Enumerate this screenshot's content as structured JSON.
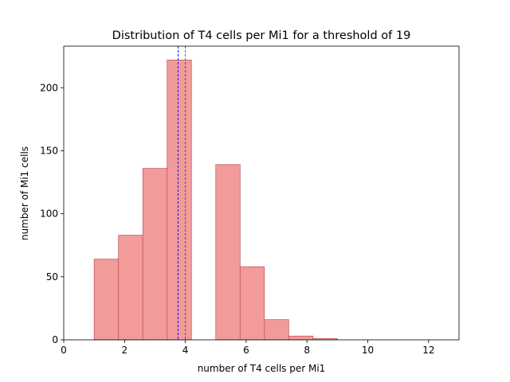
{
  "chart_data": {
    "type": "histogram",
    "title": "Distribution of T4 cells per Mi1 for a threshold of 19",
    "xlabel": "number of T4 cells per Mi1",
    "ylabel": "number of Mi1 cells",
    "xlim": [
      0,
      13
    ],
    "ylim": [
      0,
      233
    ],
    "xticks": [
      0,
      2,
      4,
      6,
      8,
      10,
      12
    ],
    "yticks": [
      0,
      50,
      100,
      150,
      200
    ],
    "grid": false,
    "legend": "none",
    "bins": [
      {
        "x0": 1.0,
        "x1": 1.8,
        "count": 64
      },
      {
        "x0": 1.8,
        "x1": 2.6,
        "count": 83
      },
      {
        "x0": 2.6,
        "x1": 3.4,
        "count": 136
      },
      {
        "x0": 3.4,
        "x1": 4.2,
        "count": 222
      },
      {
        "x0": 4.2,
        "x1": 5.0,
        "count": 0
      },
      {
        "x0": 5.0,
        "x1": 5.8,
        "count": 139
      },
      {
        "x0": 5.8,
        "x1": 6.6,
        "count": 58
      },
      {
        "x0": 6.6,
        "x1": 7.4,
        "count": 16
      },
      {
        "x0": 7.4,
        "x1": 8.2,
        "count": 3
      },
      {
        "x0": 8.2,
        "x1": 9.0,
        "count": 1
      }
    ],
    "vlines": [
      {
        "x": 3.76,
        "color": "#0000ff",
        "style": "dashed"
      },
      {
        "x": 4.0,
        "color": "#008000",
        "style": "dashed"
      }
    ],
    "bar_fill": "#f19b9b",
    "bar_edge": "#c05050"
  }
}
